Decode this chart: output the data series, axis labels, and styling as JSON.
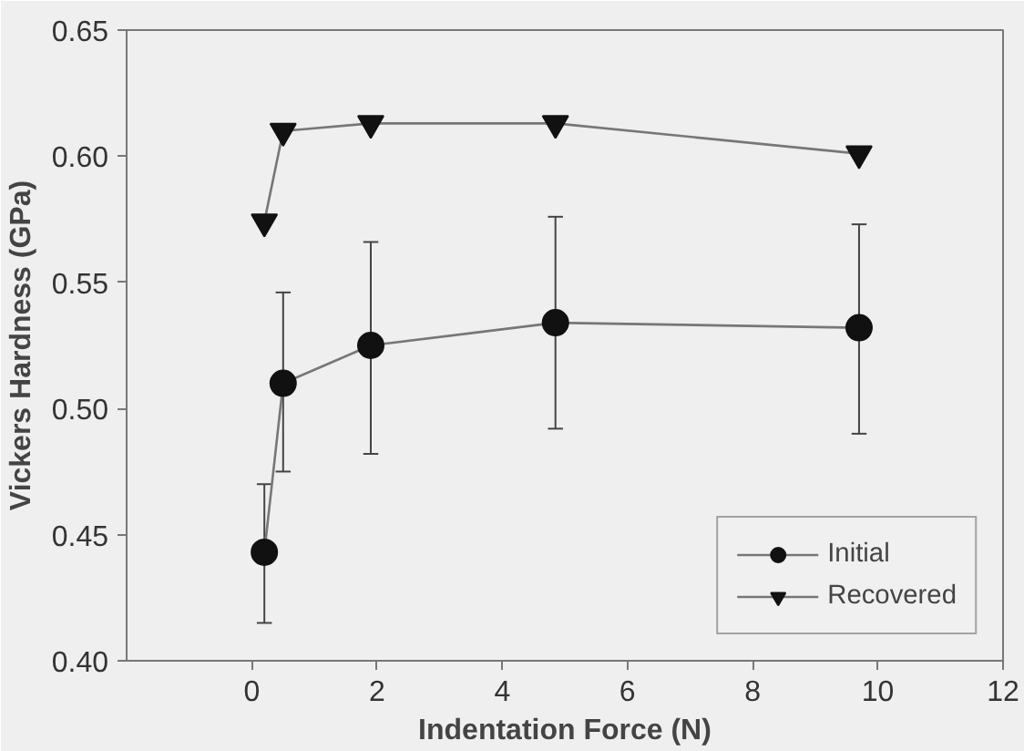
{
  "chart_data": {
    "type": "line",
    "xlabel": "Indentation Force (N)",
    "ylabel": "Vickers Hardness (GPa)",
    "xlim": [
      -2,
      12
    ],
    "xticks": [
      0,
      2,
      4,
      6,
      8,
      10,
      12
    ],
    "ylim": [
      0.4,
      0.65
    ],
    "yticks": [
      {
        "value": 0.4,
        "label": "0.40"
      },
      0.45,
      {
        "value": 0.5,
        "label": "0.50"
      },
      0.55,
      {
        "value": 0.6,
        "label": "0.60"
      },
      0.65
    ],
    "grid": false,
    "legend": "bottom right",
    "series": [
      {
        "name": "Initial",
        "color": "#111111",
        "marker": "circle",
        "x": [
          0.2,
          0.5,
          1.9,
          4.85,
          9.7
        ],
        "values": [
          0.443,
          0.51,
          0.525,
          0.534,
          0.532
        ],
        "errors": [
          [
            0.415,
            0.47
          ],
          [
            0.475,
            0.546
          ],
          [
            0.482,
            0.566
          ],
          [
            0.492,
            0.576
          ],
          [
            0.49,
            0.573
          ]
        ]
      },
      {
        "name": "Recovered",
        "color": "#111111",
        "marker": "triangle",
        "x": [
          0.2,
          0.5,
          1.9,
          4.85,
          9.7
        ],
        "values": [
          0.574,
          0.61,
          0.613,
          0.613,
          0.601
        ]
      }
    ]
  }
}
